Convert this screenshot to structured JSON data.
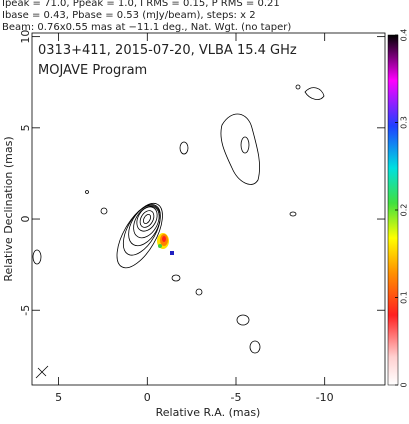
{
  "chart_data": {
    "type": "contour",
    "header": [
      "Ipeak = 71.0, Ppeak = 1.0, I RMS = 0.15, P RMS = 0.21",
      "Ibase = 0.43, Pbase = 0.53 (mJy/beam), steps: x 2",
      "Beam: 0.76x0.55 mas at −11.1 deg., Nat. Wgt. (no taper)"
    ],
    "title": "0313+411, 2015-07-20, VLBA 15.4 GHz",
    "subtitle": "MOJAVE Program",
    "x_label": "Relative R.A. (mas)",
    "y_label": "Relative Declination (mas)",
    "xlim": [
      6.5,
      -13.4
    ],
    "ylim": [
      -9.1,
      10.2
    ],
    "xticks": [
      5,
      0,
      -5,
      -10
    ],
    "yticks": [
      10,
      5,
      0,
      -5
    ],
    "clim": [
      0,
      0.4
    ],
    "cticks": [
      0,
      0.1,
      0.2,
      0.3,
      0.4
    ]
  }
}
